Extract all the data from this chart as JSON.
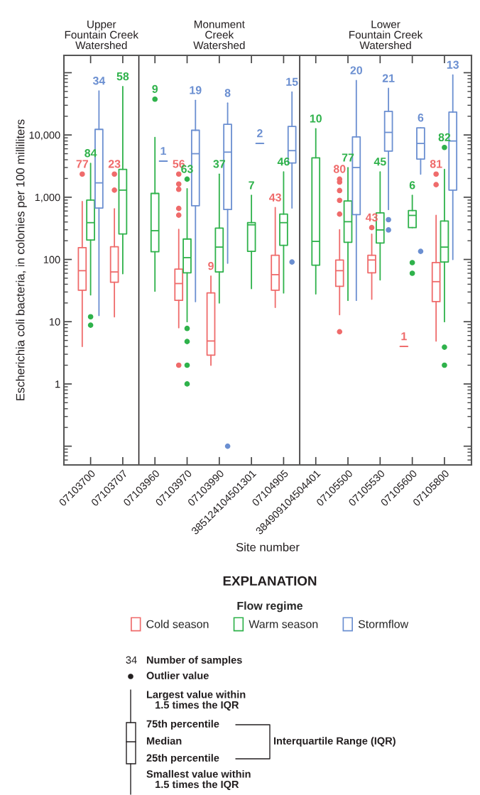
{
  "chart_data": {
    "type": "box",
    "ylabel": "Escherichia coli bacteria, in colonies per 100 milliliters",
    "xlabel": "Site number",
    "categories": [
      "07103700",
      "07103707",
      "07103960",
      "07103970",
      "07103990",
      "385124104501301",
      "07104905",
      "384909104504401",
      "07105500",
      "07105530",
      "07105600",
      "07105800"
    ],
    "log": "y",
    "ylim": [
      0.05,
      190000
    ],
    "yticks": [
      {
        "value": 0.1,
        "label": null
      },
      1,
      10,
      100,
      {
        "value": 1000,
        "label": "1,000"
      },
      {
        "value": 10000,
        "label": "10,000"
      },
      {
        "value": 100000,
        "label": null
      }
    ],
    "legend": "bottom",
    "legend_title": "Flow regime",
    "marker": "circle",
    "series": [
      {
        "name": "Cold season",
        "color": "#ef6b6b",
        "boxes": [
          {
            "low": 4,
            "q1": 32,
            "median": 66,
            "q3": 155,
            "high": 850,
            "outliers": [
              2350
            ]
          },
          {
            "low": 12,
            "q1": 43,
            "median": 63,
            "q3": 160,
            "high": 650,
            "outliers": [
              1300,
              2350
            ]
          },
          null,
          {
            "low": 8,
            "q1": 22,
            "median": 41,
            "q3": 70,
            "high": 305,
            "outliers": [
              2,
              515,
              660,
              1340,
              1630,
              2350
            ]
          },
          {
            "low": 2,
            "q1": 2.9,
            "median": 4.9,
            "q3": 29,
            "high": 54
          },
          null,
          {
            "low": 17,
            "q1": 32,
            "median": 57,
            "q3": 117,
            "high": 680
          },
          null,
          {
            "low": 13,
            "q1": 37,
            "median": 66,
            "q3": 98,
            "high": 300,
            "outliers": [
              6.9,
              535,
              890,
              1280,
              1750,
              1950
            ]
          },
          {
            "low": 23,
            "q1": 61,
            "median": 98,
            "q3": 117,
            "high": 254,
            "outliers": [
              325
            ]
          },
          {
            "low": 4,
            "q1": 4,
            "median": 4,
            "q3": 4,
            "high": 4
          },
          {
            "low": 4.9,
            "q1": 21,
            "median": 44,
            "q3": 89,
            "high": 510,
            "outliers": [
              1590,
              2350
            ]
          }
        ]
      },
      {
        "name": "Warm season",
        "color": "#2fb24b",
        "boxes": [
          {
            "low": 27,
            "q1": 205,
            "median": 390,
            "q3": 900,
            "high": 3500,
            "outliers": [
              8.8,
              12
            ]
          },
          {
            "low": 59,
            "q1": 257,
            "median": 1300,
            "q3": 2800,
            "high": 60000
          },
          {
            "low": 31,
            "q1": 133,
            "median": 290,
            "q3": 1150,
            "high": 9100,
            "outliers": [
              37600
            ]
          },
          {
            "low": 10,
            "q1": 61,
            "median": 107,
            "q3": 213,
            "high": 1370,
            "outliers": [
              1,
              2,
              4.8,
              7.8,
              1950
            ]
          },
          {
            "low": 20,
            "q1": 63,
            "median": 158,
            "q3": 318,
            "high": 2350
          },
          {
            "low": 34,
            "q1": 135,
            "median": 360,
            "q3": 390,
            "high": 1070
          },
          {
            "low": 29,
            "q1": 169,
            "median": 390,
            "q3": 535,
            "high": 2560
          },
          {
            "low": 28,
            "q1": 81,
            "median": 195,
            "q3": 4300,
            "high": 12600
          },
          {
            "low": 22,
            "q1": 189,
            "median": 404,
            "q3": 870,
            "high": 2980
          },
          {
            "low": 47,
            "q1": 184,
            "median": 298,
            "q3": 560,
            "high": 2560
          },
          {
            "low": 325,
            "q1": 325,
            "median": 510,
            "q3": 610,
            "high": 1070,
            "outliers": [
              60,
              89
            ]
          },
          {
            "low": 10,
            "q1": 91,
            "median": 158,
            "q3": 414,
            "high": 2800,
            "outliers": [
              2,
              3.9,
              6300
            ]
          }
        ]
      },
      {
        "name": "Stormflow",
        "color": "#6b8fd1",
        "boxes": [
          {
            "low": 12.6,
            "q1": 670,
            "median": 1700,
            "q3": 12300,
            "high": 51000
          },
          null,
          {
            "low": 3800,
            "q1": 3800,
            "median": 3800,
            "q3": 3800,
            "high": 3800
          },
          {
            "low": 21,
            "q1": 730,
            "median": 5000,
            "q3": 11900,
            "high": 36000
          },
          {
            "low": 87,
            "q1": 635,
            "median": 5300,
            "q3": 14800,
            "high": 32500,
            "outliers": [
              0.1
            ]
          },
          {
            "low": 7300,
            "q1": 7300,
            "median": 7300,
            "q3": 7300,
            "high": 7300
          },
          {
            "low": 670,
            "q1": 3550,
            "median": 5600,
            "q3": 13700,
            "high": 49000,
            "outliers": [
              91
            ]
          },
          null,
          {
            "low": 22,
            "q1": 525,
            "median": 3000,
            "q3": 9300,
            "high": 75000
          },
          {
            "low": 635,
            "q1": 5500,
            "median": 11000,
            "q3": 24000,
            "high": 56000,
            "outliers": [
              298,
              436
            ]
          },
          {
            "low": 2350,
            "q1": 4100,
            "median": 7300,
            "q3": 13000,
            "high": 13000,
            "outliers": [
              135
            ]
          },
          {
            "low": 100,
            "q1": 1300,
            "median": 8000,
            "q3": 23300,
            "high": 92000
          }
        ]
      }
    ],
    "annotations": [
      "Upper\nFountain Creek\nWatershed",
      "Monument\nCreek\nWatershed",
      "Lower\nFountain Creek\nWatershed",
      "77",
      "23",
      "56",
      "9",
      "43",
      "80",
      "43",
      "1",
      "81",
      "84",
      "58",
      "9",
      "63",
      "37",
      "7",
      "46",
      "10",
      "77",
      "45",
      "6",
      "82",
      "34",
      "1",
      "19",
      "8",
      "2",
      "15",
      "20",
      "21",
      "6",
      "13",
      "EXPLANATION",
      "34",
      "Number of samples",
      "Outlier value",
      "Largest value within\n   1.5 times the IQR",
      "75th percentile",
      "Median",
      "25th percentile",
      "Smallest value within\n   1.5 times the IQR",
      "Interquartile Range (IQR)"
    ]
  }
}
